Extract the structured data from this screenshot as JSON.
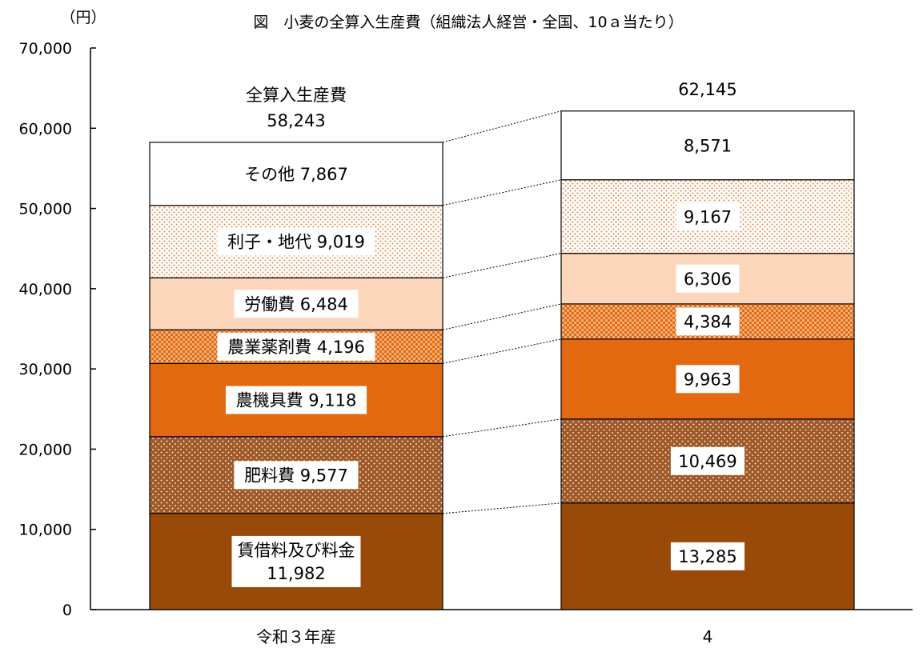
{
  "chart_data": {
    "type": "bar",
    "stacked": true,
    "title": "図　小麦の全算入生産費（組織法人経営・全国、10ａ当たり）",
    "unit_label": "（円）",
    "ylim": [
      0,
      70000
    ],
    "yticks": [
      0,
      10000,
      20000,
      30000,
      40000,
      50000,
      60000,
      70000
    ],
    "ytick_labels": [
      "0",
      "10,000",
      "20,000",
      "30,000",
      "40,000",
      "50,000",
      "60,000",
      "70,000"
    ],
    "categories": [
      "令和３年産",
      "4"
    ],
    "totals": [
      58243,
      62145
    ],
    "total_labels": [
      "58,243",
      "62,145"
    ],
    "total_caption": "全算入生産費",
    "series": [
      {
        "name": "賃借料及び料金",
        "values": [
          11982,
          13285
        ],
        "color": "#9a4a08",
        "pattern": "solid",
        "labels": [
          "賃借料及び料金\n11,982",
          "13,285"
        ]
      },
      {
        "name": "肥料費",
        "values": [
          9577,
          10469
        ],
        "color": "#a05a28",
        "pattern": "dots-white",
        "labels": [
          "肥料費 9,577",
          "10,469"
        ]
      },
      {
        "name": "農機具費",
        "values": [
          9118,
          9963
        ],
        "color": "#e2690f",
        "pattern": "solid",
        "labels": [
          "農機具費 9,118",
          "9,963"
        ]
      },
      {
        "name": "農業薬剤費",
        "values": [
          4196,
          4384
        ],
        "color": "#f08a3c",
        "pattern": "checker",
        "labels": [
          "農業薬剤費 4,196",
          "4,384"
        ]
      },
      {
        "name": "労働費",
        "values": [
          6484,
          6306
        ],
        "color": "#fbd6bb",
        "pattern": "solid",
        "labels": [
          "労働費 6,484",
          "6,306"
        ]
      },
      {
        "name": "利子・地代",
        "values": [
          9019,
          9167
        ],
        "color": "#f0a060",
        "pattern": "dots-orange",
        "labels": [
          "利子・地代 9,019",
          "9,167"
        ]
      },
      {
        "name": "その他",
        "values": [
          7867,
          8571
        ],
        "color": "#ffffff",
        "pattern": "solid",
        "labels": [
          "その他 7,867",
          "8,571"
        ]
      }
    ]
  }
}
